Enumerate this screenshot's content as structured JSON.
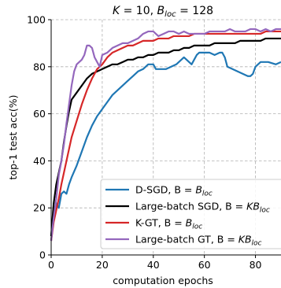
{
  "chart_data": {
    "type": "line",
    "title": "K = 10, B_loc = 128",
    "xlabel": "computation epochs",
    "ylabel": "top-1 test acc(%)",
    "xlim": [
      0,
      90
    ],
    "ylim": [
      0,
      100
    ],
    "xticks": [
      0,
      20,
      40,
      60,
      80
    ],
    "yticks": [
      0,
      20,
      40,
      60,
      80,
      100
    ],
    "grid": "dashed",
    "legend_position": "lower-right",
    "series": [
      {
        "name": "D-SGD, B = B_loc",
        "color": "#1f77b4",
        "points": [
          [
            0,
            8
          ],
          [
            1,
            18
          ],
          [
            2,
            22
          ],
          [
            3,
            20
          ],
          [
            4,
            26
          ],
          [
            5,
            27
          ],
          [
            6,
            26
          ],
          [
            7,
            30
          ],
          [
            8,
            33
          ],
          [
            10,
            38
          ],
          [
            12,
            44
          ],
          [
            14,
            50
          ],
          [
            16,
            55
          ],
          [
            18,
            59
          ],
          [
            20,
            62
          ],
          [
            22,
            65
          ],
          [
            24,
            68
          ],
          [
            26,
            70
          ],
          [
            28,
            72
          ],
          [
            30,
            74
          ],
          [
            32,
            76
          ],
          [
            34,
            78
          ],
          [
            36,
            79
          ],
          [
            38,
            81
          ],
          [
            40,
            81
          ],
          [
            41,
            79
          ],
          [
            43,
            79
          ],
          [
            45,
            79
          ],
          [
            47,
            80
          ],
          [
            49,
            81
          ],
          [
            51,
            83
          ],
          [
            52,
            84
          ],
          [
            53,
            83
          ],
          [
            55,
            81
          ],
          [
            56,
            83
          ],
          [
            57,
            85
          ],
          [
            58,
            86
          ],
          [
            60,
            86
          ],
          [
            62,
            86
          ],
          [
            64,
            85
          ],
          [
            66,
            86
          ],
          [
            67,
            86
          ],
          [
            68,
            84
          ],
          [
            69,
            80
          ],
          [
            71,
            79
          ],
          [
            73,
            78
          ],
          [
            75,
            77
          ],
          [
            77,
            76
          ],
          [
            78,
            76
          ],
          [
            79,
            77
          ],
          [
            80,
            80
          ],
          [
            82,
            82
          ],
          [
            85,
            82
          ],
          [
            88,
            81
          ],
          [
            90,
            82
          ]
        ]
      },
      {
        "name": "Large-batch SGD, B = KB_loc",
        "color": "#000000",
        "points": [
          [
            0,
            8
          ],
          [
            1,
            22
          ],
          [
            2,
            30
          ],
          [
            3,
            35
          ],
          [
            4,
            40
          ],
          [
            5,
            48
          ],
          [
            6,
            55
          ],
          [
            7,
            61
          ],
          [
            8,
            66
          ],
          [
            10,
            69
          ],
          [
            12,
            72
          ],
          [
            14,
            75
          ],
          [
            16,
            77
          ],
          [
            18,
            78
          ],
          [
            20,
            79
          ],
          [
            22,
            80
          ],
          [
            24,
            81
          ],
          [
            26,
            81
          ],
          [
            28,
            82
          ],
          [
            30,
            83
          ],
          [
            32,
            83
          ],
          [
            34,
            84
          ],
          [
            36,
            84
          ],
          [
            38,
            85
          ],
          [
            40,
            85
          ],
          [
            42,
            86
          ],
          [
            44,
            86
          ],
          [
            46,
            86
          ],
          [
            48,
            87
          ],
          [
            50,
            87
          ],
          [
            52,
            88
          ],
          [
            54,
            88
          ],
          [
            56,
            89
          ],
          [
            58,
            89
          ],
          [
            60,
            89
          ],
          [
            62,
            89
          ],
          [
            64,
            90
          ],
          [
            66,
            90
          ],
          [
            68,
            90
          ],
          [
            70,
            90
          ],
          [
            72,
            90
          ],
          [
            74,
            91
          ],
          [
            76,
            91
          ],
          [
            78,
            91
          ],
          [
            80,
            91
          ],
          [
            82,
            91
          ],
          [
            84,
            92
          ],
          [
            86,
            92
          ],
          [
            88,
            92
          ],
          [
            90,
            92
          ]
        ]
      },
      {
        "name": "K-GT, B = B_loc",
        "color": "#d62728",
        "points": [
          [
            0,
            6
          ],
          [
            1,
            14
          ],
          [
            2,
            19
          ],
          [
            3,
            24
          ],
          [
            4,
            30
          ],
          [
            5,
            35
          ],
          [
            6,
            40
          ],
          [
            7,
            45
          ],
          [
            8,
            50
          ],
          [
            10,
            57
          ],
          [
            12,
            64
          ],
          [
            14,
            70
          ],
          [
            16,
            75
          ],
          [
            18,
            79
          ],
          [
            20,
            81
          ],
          [
            22,
            84
          ],
          [
            24,
            86
          ],
          [
            26,
            87
          ],
          [
            28,
            88
          ],
          [
            30,
            89
          ],
          [
            32,
            89
          ],
          [
            34,
            90
          ],
          [
            36,
            91
          ],
          [
            38,
            91
          ],
          [
            40,
            91
          ],
          [
            42,
            92
          ],
          [
            44,
            92
          ],
          [
            46,
            92
          ],
          [
            48,
            93
          ],
          [
            50,
            93
          ],
          [
            52,
            93
          ],
          [
            54,
            93
          ],
          [
            56,
            94
          ],
          [
            58,
            94
          ],
          [
            60,
            94
          ],
          [
            62,
            94
          ],
          [
            64,
            94
          ],
          [
            66,
            94
          ],
          [
            68,
            94
          ],
          [
            70,
            94
          ],
          [
            72,
            94
          ],
          [
            74,
            94
          ],
          [
            76,
            94
          ],
          [
            78,
            94
          ],
          [
            80,
            94
          ],
          [
            82,
            94
          ],
          [
            84,
            95
          ],
          [
            86,
            95
          ],
          [
            88,
            95
          ],
          [
            90,
            95
          ]
        ]
      },
      {
        "name": "Large-batch GT, B = KB_loc",
        "color": "#9467bd",
        "points": [
          [
            0,
            6
          ],
          [
            1,
            16
          ],
          [
            2,
            24
          ],
          [
            3,
            34
          ],
          [
            4,
            40
          ],
          [
            5,
            47
          ],
          [
            6,
            56
          ],
          [
            7,
            64
          ],
          [
            8,
            72
          ],
          [
            9,
            78
          ],
          [
            10,
            81
          ],
          [
            11,
            82
          ],
          [
            12,
            83
          ],
          [
            13,
            85
          ],
          [
            14,
            89
          ],
          [
            15,
            89
          ],
          [
            16,
            88
          ],
          [
            17,
            84
          ],
          [
            18,
            82
          ],
          [
            19,
            80
          ],
          [
            20,
            85
          ],
          [
            22,
            86
          ],
          [
            24,
            88
          ],
          [
            26,
            89
          ],
          [
            28,
            90
          ],
          [
            30,
            90
          ],
          [
            32,
            91
          ],
          [
            34,
            92
          ],
          [
            36,
            94
          ],
          [
            38,
            95
          ],
          [
            40,
            95
          ],
          [
            42,
            93
          ],
          [
            44,
            94
          ],
          [
            46,
            95
          ],
          [
            48,
            95
          ],
          [
            50,
            94
          ],
          [
            52,
            95
          ],
          [
            54,
            94
          ],
          [
            56,
            94
          ],
          [
            58,
            94
          ],
          [
            60,
            94
          ],
          [
            62,
            95
          ],
          [
            64,
            95
          ],
          [
            66,
            95
          ],
          [
            68,
            95
          ],
          [
            70,
            96
          ],
          [
            72,
            95
          ],
          [
            74,
            95
          ],
          [
            76,
            95
          ],
          [
            78,
            96
          ],
          [
            80,
            96
          ],
          [
            82,
            95
          ],
          [
            84,
            96
          ],
          [
            86,
            95
          ],
          [
            88,
            96
          ],
          [
            90,
            96
          ]
        ]
      }
    ]
  }
}
